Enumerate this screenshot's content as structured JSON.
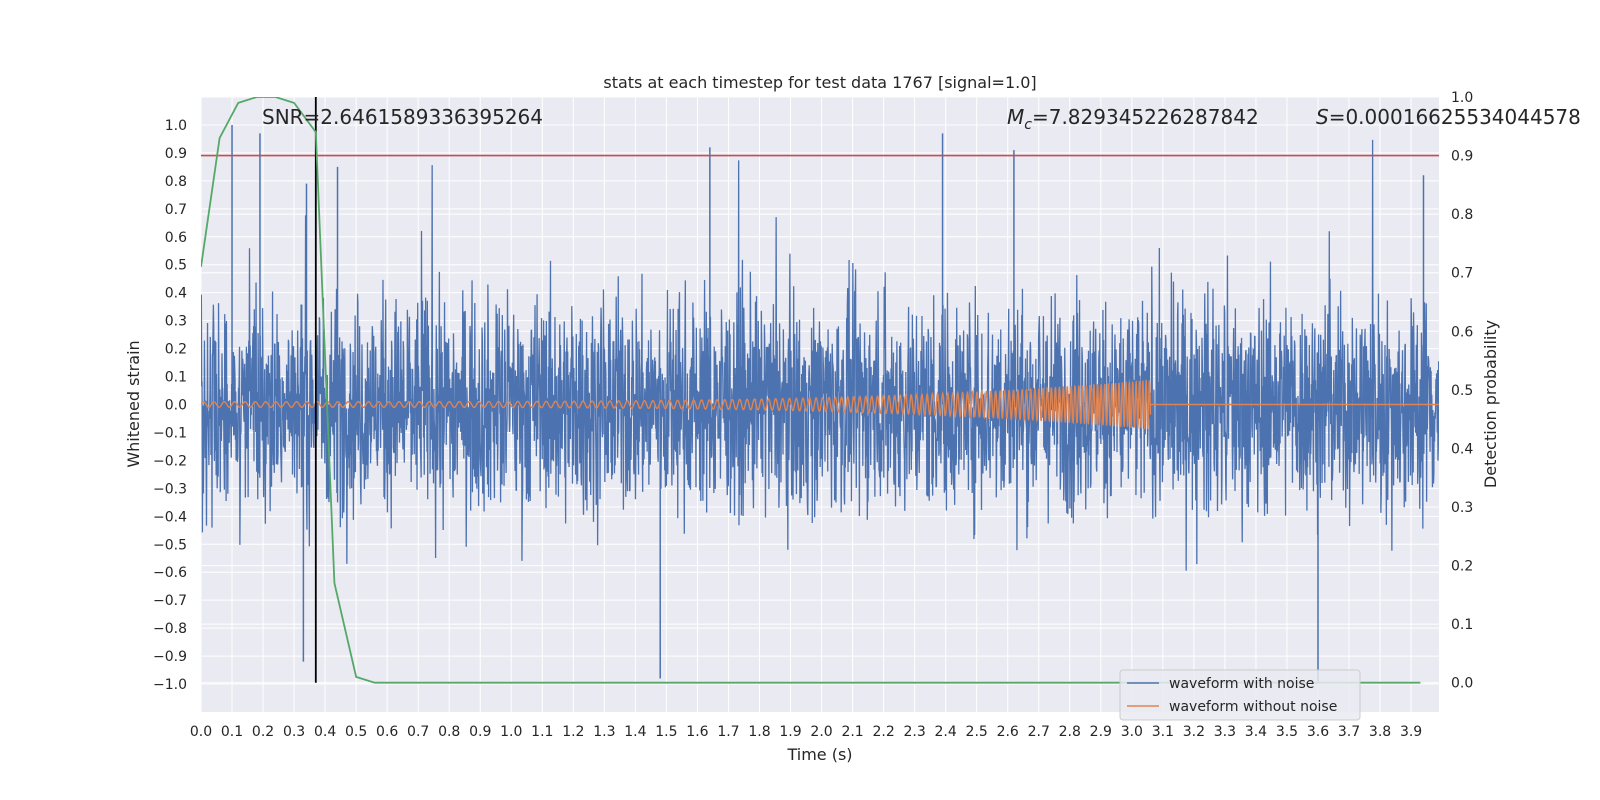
{
  "chart_data": {
    "type": "line",
    "title": "stats at each timestep for test data 1767 [signal=1.0]",
    "xlabel": "Time (s)",
    "ylabel": "Whitened strain",
    "y2label": "Detection probability",
    "xlim": [
      0.0,
      3.99
    ],
    "ylim": [
      -1.1,
      1.1
    ],
    "y2lim": [
      -0.05,
      1.0
    ],
    "grid": true,
    "x_ticks": [
      "0.0",
      "0.1",
      "0.2",
      "0.3",
      "0.4",
      "0.5",
      "0.6",
      "0.7",
      "0.8",
      "0.9",
      "1.0",
      "1.1",
      "1.2",
      "1.3",
      "1.4",
      "1.5",
      "1.6",
      "1.7",
      "1.8",
      "1.9",
      "2.0",
      "2.1",
      "2.2",
      "2.3",
      "2.4",
      "2.5",
      "2.6",
      "2.7",
      "2.8",
      "2.9",
      "3.0",
      "3.1",
      "3.2",
      "3.3",
      "3.4",
      "3.5",
      "3.6",
      "3.7",
      "3.8",
      "3.9"
    ],
    "y_ticks": [
      "1.0",
      "0.9",
      "0.8",
      "0.7",
      "0.6",
      "0.5",
      "0.4",
      "0.3",
      "0.2",
      "0.1",
      "0.0",
      "−0.1",
      "−0.2",
      "−0.3",
      "−0.4",
      "−0.5",
      "−0.6",
      "−0.7",
      "−0.8",
      "−0.9",
      "−1.0"
    ],
    "y2_ticks": [
      "1.0",
      "0.9",
      "0.8",
      "0.7",
      "0.6",
      "0.5",
      "0.4",
      "0.3",
      "0.2",
      "0.1",
      "0.0"
    ],
    "annotations": {
      "snr": "SNR=2.6461589336395264",
      "mc_symbol": "M",
      "mc_sub": "c",
      "mc_value": "=7.829345226287842",
      "s_symbol": "S",
      "s_value": "=0.00016625534044578"
    },
    "threshold_y2": 0.9,
    "event_time": 0.37,
    "series": [
      {
        "name": "waveform with noise",
        "color": "#4c72b0",
        "t_start": 0.0,
        "t_end": 3.99,
        "typical_amplitude": 0.3,
        "peaks": [
          {
            "t": 0.1,
            "v": 1.0
          },
          {
            "t": 0.19,
            "v": 0.97
          },
          {
            "t": 0.33,
            "v": -0.92
          },
          {
            "t": 0.34,
            "v": 0.79
          },
          {
            "t": 0.44,
            "v": 0.85
          },
          {
            "t": 1.48,
            "v": -0.98
          },
          {
            "t": 1.64,
            "v": 0.92
          },
          {
            "t": 2.39,
            "v": 0.97
          },
          {
            "t": 2.62,
            "v": 0.91
          },
          {
            "t": 3.6,
            "v": -0.99
          },
          {
            "t": 3.94,
            "v": 0.82
          }
        ]
      },
      {
        "name": "waveform without noise",
        "color": "#dd8452",
        "t_start": 0.0,
        "t_end": 3.06,
        "amplitude_start": 0.01,
        "amplitude_end": 0.09,
        "frequency_start_hz": 30,
        "frequency_end_hz": 95
      },
      {
        "name": "detection probability",
        "color": "#55a868",
        "axis": "y2",
        "t": [
          0.0,
          0.06,
          0.12,
          0.18,
          0.24,
          0.3,
          0.37,
          0.43,
          0.5,
          0.56,
          0.62,
          1.0,
          2.0,
          3.0,
          3.93
        ],
        "values": [
          0.71,
          0.93,
          0.99,
          1.0,
          1.0,
          0.99,
          0.94,
          0.17,
          0.01,
          0.0,
          0.0,
          0.0,
          0.0,
          0.0,
          0.0
        ]
      }
    ],
    "legend": {
      "position": "lower-right",
      "entries": [
        {
          "label": "waveform with noise",
          "color": "#4c72b0"
        },
        {
          "label": "waveform without noise",
          "color": "#dd8452"
        }
      ]
    }
  }
}
